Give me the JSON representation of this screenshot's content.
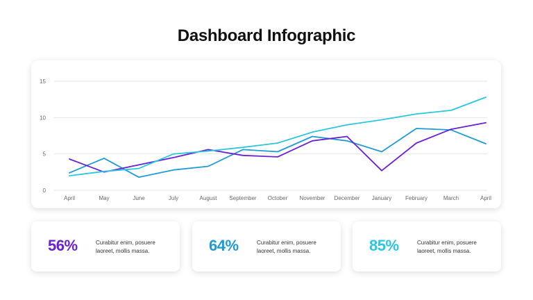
{
  "title": "Dashboard Infographic",
  "chart_data": {
    "type": "line",
    "categories": [
      "April",
      "May",
      "June",
      "July",
      "August",
      "September",
      "October",
      "November",
      "December",
      "January",
      "February",
      "March",
      "April"
    ],
    "ylim": [
      0,
      15
    ],
    "yticks": [
      0,
      5,
      10,
      15
    ],
    "grid": true,
    "series": [
      {
        "color": "#1e9bd7",
        "values": [
          2.4,
          4.4,
          1.8,
          2.8,
          3.3,
          5.6,
          5.3,
          7.4,
          6.8,
          5.3,
          8.5,
          8.3,
          6.4
        ]
      },
      {
        "color": "#6a1fd1",
        "values": [
          4.3,
          2.5,
          3.5,
          4.5,
          5.6,
          4.8,
          4.6,
          6.8,
          7.4,
          2.7,
          6.5,
          8.4,
          9.3
        ]
      },
      {
        "color": "#27c7e2",
        "values": [
          2.0,
          2.6,
          3.0,
          5.0,
          5.4,
          5.9,
          6.5,
          8.0,
          9.0,
          9.7,
          10.5,
          11.0,
          12.8
        ]
      }
    ]
  },
  "stats": [
    {
      "value": "56%",
      "color": "#6a1fd1",
      "text": "Curabitur enim, posuere laoreet, mollis massa."
    },
    {
      "value": "64%",
      "color": "#1e9bd7",
      "text": "Curabitur enim, posuere laoreet, mollis massa."
    },
    {
      "value": "85%",
      "color": "#27c7e2",
      "text": "Curabitur enim, posuere laoreet, mollis massa."
    }
  ]
}
